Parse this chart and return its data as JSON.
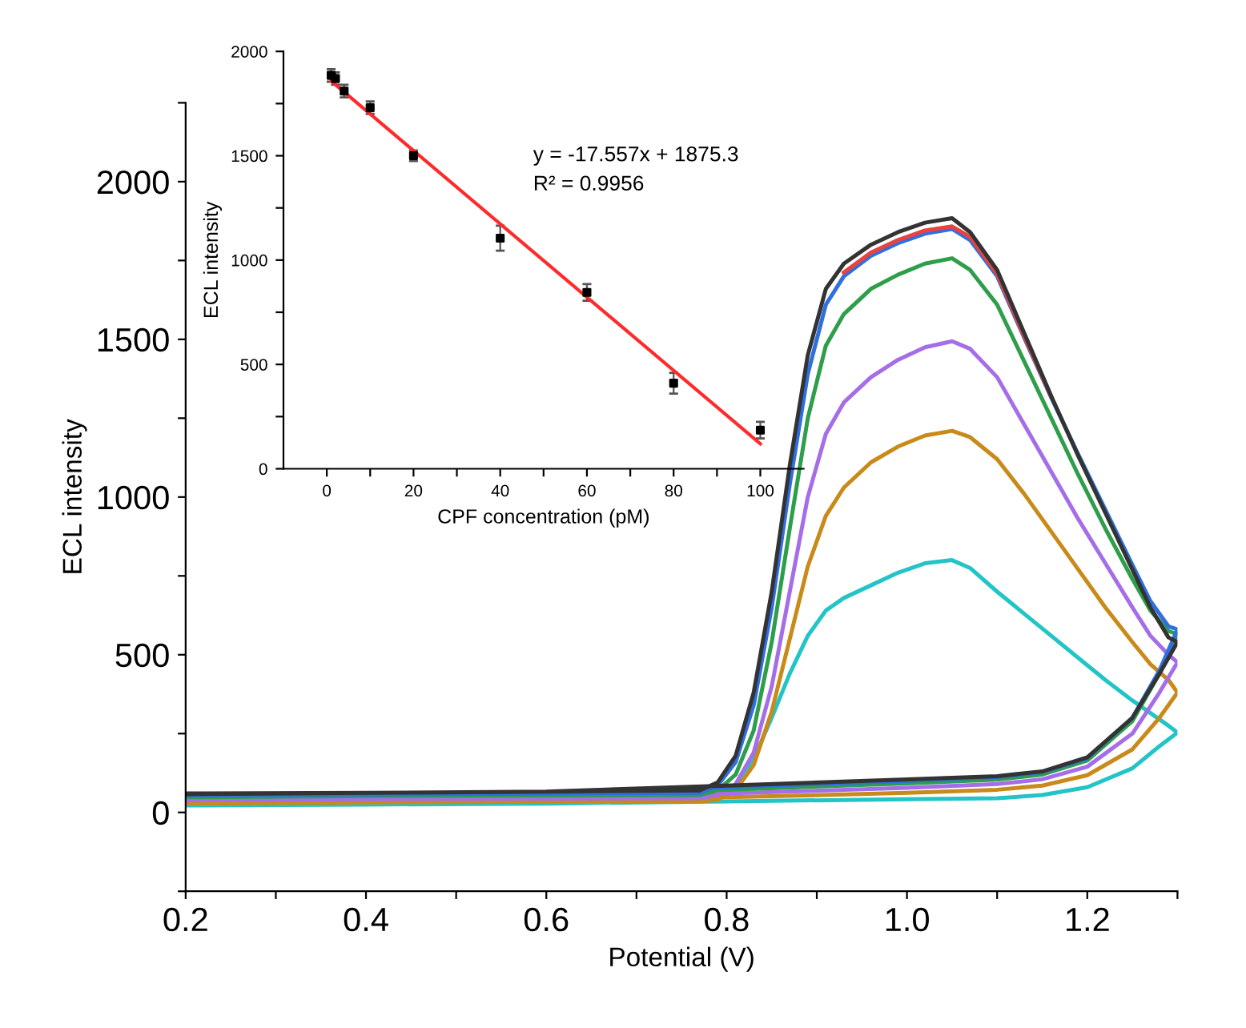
{
  "chart_data": [
    {
      "type": "line",
      "xlabel": "Potential (V)",
      "ylabel": "ECL intensity",
      "xlim": [
        0.2,
        1.3
      ],
      "ylim": [
        -250,
        2250
      ],
      "xticks": [
        0.2,
        {
          "value": 0.3,
          "label": null
        },
        0.4,
        {
          "value": 0.5,
          "label": null
        },
        0.6,
        {
          "value": 0.7,
          "label": null
        },
        0.8,
        {
          "value": 0.9,
          "label": null
        },
        {
          "value": 1.0,
          "label": "1.0"
        },
        {
          "value": 1.1,
          "label": null
        },
        1.2,
        {
          "value": 1.3,
          "label": null
        }
      ],
      "yticks": [
        {
          "value": -250,
          "label": null
        },
        0,
        {
          "value": 250,
          "label": null
        },
        500,
        {
          "value": 750,
          "label": null
        },
        1000,
        {
          "value": 1250,
          "label": null
        },
        1500,
        {
          "value": 1750,
          "label": null
        },
        2000,
        {
          "value": 2250,
          "label": null
        }
      ],
      "grid": false,
      "legend": false,
      "marker": "none",
      "line_style": "solid",
      "x": [
        0.2,
        0.4,
        0.6,
        0.8,
        1.0,
        1.1,
        1.15,
        1.2,
        1.25,
        1.28,
        1.3,
        1.29,
        1.27,
        1.25,
        1.22,
        1.19,
        1.16,
        1.13,
        1.1,
        1.07,
        1.05,
        1.02,
        0.99,
        0.96,
        0.93,
        0.91,
        0.89,
        0.87,
        0.85,
        0.83,
        0.81,
        0.79,
        0.77,
        0.6,
        0.4,
        0.2
      ],
      "series": [
        {
          "color": "#22c4c8",
          "values": [
            22,
            25,
            28,
            35,
            42,
            45,
            55,
            80,
            140,
            210,
            253,
            275,
            315,
            355,
            420,
            490,
            560,
            630,
            700,
            775,
            800,
            790,
            760,
            720,
            680,
            640,
            560,
            440,
            300,
            170,
            80,
            45,
            35,
            32,
            28,
            25
          ]
        },
        {
          "color": "#c98a1a",
          "values": [
            28,
            32,
            36,
            48,
            62,
            72,
            85,
            118,
            200,
            300,
            380,
            420,
            470,
            540,
            650,
            770,
            890,
            1010,
            1120,
            1190,
            1210,
            1195,
            1160,
            1110,
            1030,
            940,
            780,
            550,
            320,
            150,
            70,
            40,
            35,
            34,
            32,
            30
          ]
        },
        {
          "color": "#a56ee8",
          "values": [
            38,
            42,
            46,
            60,
            78,
            90,
            105,
            145,
            250,
            380,
            476,
            500,
            560,
            650,
            790,
            930,
            1080,
            1230,
            1380,
            1470,
            1494,
            1475,
            1435,
            1380,
            1300,
            1200,
            1000,
            700,
            400,
            190,
            90,
            55,
            45,
            44,
            42,
            40
          ]
        },
        {
          "color": "#2e9e4a",
          "values": [
            48,
            52,
            56,
            72,
            92,
            104,
            120,
            165,
            290,
            440,
            565,
            575,
            640,
            740,
            900,
            1070,
            1250,
            1430,
            1610,
            1720,
            1757,
            1740,
            1705,
            1660,
            1580,
            1480,
            1250,
            900,
            540,
            260,
            120,
            70,
            55,
            54,
            52,
            50
          ]
        },
        {
          "color": "#2f6fe0",
          "values": [
            54,
            58,
            62,
            80,
            100,
            112,
            128,
            172,
            300,
            450,
            580,
            590,
            670,
            785,
            960,
            1135,
            1315,
            1505,
            1700,
            1815,
            1850,
            1835,
            1805,
            1765,
            1700,
            1610,
            1390,
            1040,
            650,
            340,
            160,
            85,
            62,
            60,
            57,
            55
          ]
        },
        {
          "color": "#e8433f",
          "x": [
            1.16,
            1.13,
            1.1,
            1.07,
            1.05,
            1.02,
            0.99,
            0.96,
            0.93
          ],
          "values": [
            1318,
            1510,
            1708,
            1825,
            1858,
            1845,
            1815,
            1775,
            1712
          ]
        },
        {
          "color": "#333333",
          "values": [
            58,
            62,
            66,
            85,
            105,
            115,
            130,
            175,
            300,
            440,
            540,
            555,
            650,
            770,
            950,
            1130,
            1320,
            1520,
            1720,
            1840,
            1884,
            1870,
            1840,
            1800,
            1740,
            1660,
            1450,
            1100,
            700,
            380,
            180,
            95,
            70,
            66,
            62,
            60
          ]
        }
      ]
    },
    {
      "type": "scatter",
      "xlabel": "CPF concentration (pM)",
      "ylabel": "ECL intensity",
      "xlim": [
        -10,
        110
      ],
      "ylim": [
        0,
        2000
      ],
      "xticks": [
        0,
        {
          "value": 10,
          "label": null
        },
        20,
        {
          "value": 30,
          "label": null
        },
        40,
        {
          "value": 50,
          "label": null
        },
        60,
        {
          "value": 70,
          "label": null
        },
        80,
        {
          "value": 90,
          "label": null
        },
        100
      ],
      "yticks": [
        0,
        {
          "value": 250,
          "label": null
        },
        500,
        {
          "value": 750,
          "label": null
        },
        1000,
        {
          "value": 1250,
          "label": null
        },
        1500,
        {
          "value": 1750,
          "label": null
        },
        2000
      ],
      "grid": false,
      "legend": false,
      "annotations": [
        "y = -17.557x + 1875.3",
        "R² = 0.9956"
      ],
      "series": [
        {
          "type": "scatter",
          "marker": "square",
          "color": "#000000",
          "x": [
            1,
            2,
            4,
            10,
            20,
            40,
            60,
            80,
            100
          ],
          "values": [
            1885,
            1870,
            1810,
            1730,
            1500,
            1105,
            845,
            410,
            185
          ],
          "errors": [
            30,
            30,
            30,
            30,
            25,
            60,
            40,
            50,
            40
          ]
        },
        {
          "type": "line",
          "marker": "none",
          "line_style": "solid",
          "color": "#ff2a2a",
          "x": [
            1,
            100
          ],
          "values": [
            1858,
            120
          ]
        }
      ]
    }
  ]
}
